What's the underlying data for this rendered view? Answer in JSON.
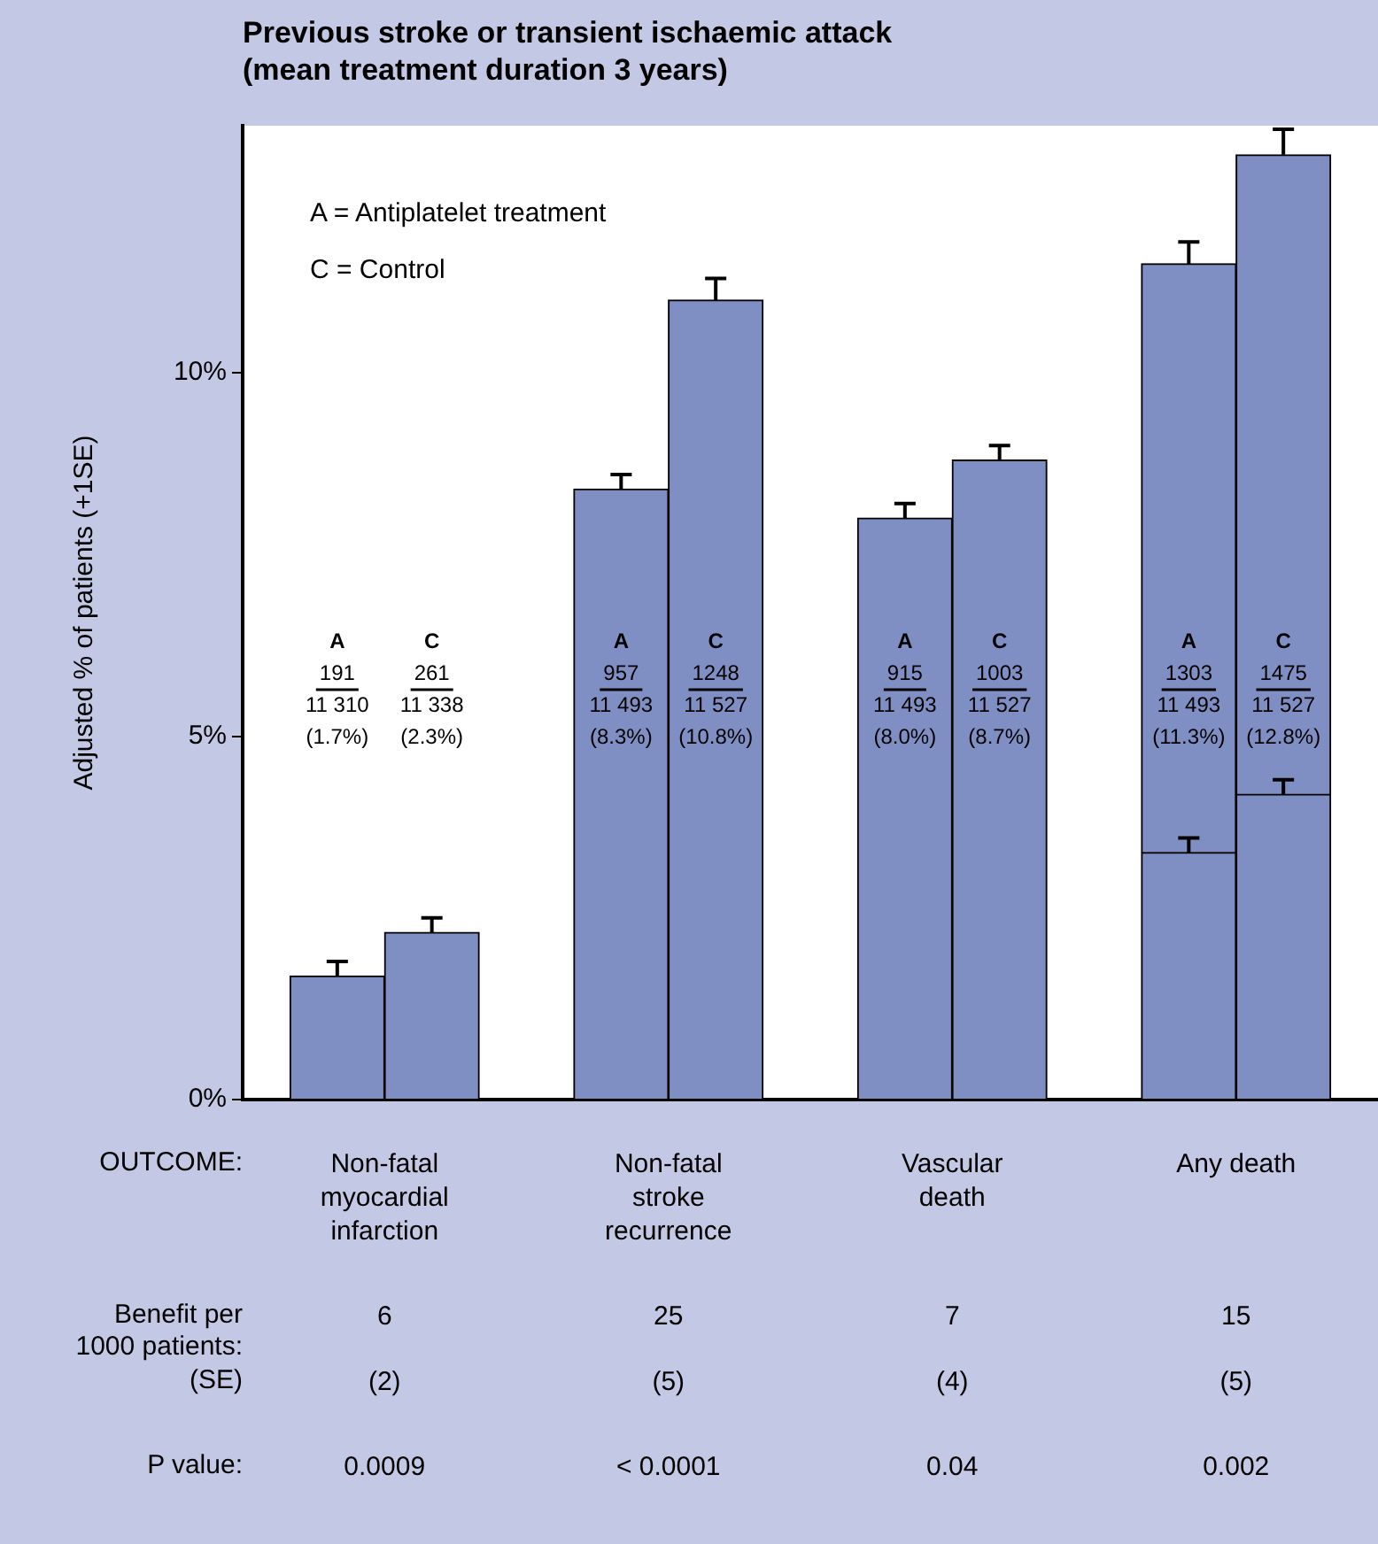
{
  "chart_data": {
    "type": "bar",
    "title": "Previous stroke or transient ischaemic attack (mean treatment duration 3 years)",
    "ylabel": "Adjusted % of patients (+1SE)",
    "categories": [
      null,
      "A",
      "C",
      null,
      "A",
      "C",
      null,
      "A",
      "C",
      null,
      "A",
      "C",
      null
    ],
    "stacked": true,
    "series": [
      {
        "color": "#7f8fc4",
        "values": [
          null,
          1.7,
          2.3,
          null,
          8.4,
          11.0,
          null,
          8.0,
          8.8,
          null,
          3.4,
          4.2,
          null
        ],
        "errors": [
          null,
          0.2,
          0.2,
          null,
          0.2,
          0.3,
          null,
          0.2,
          0.2,
          null,
          0.2,
          0.2,
          null
        ]
      },
      {
        "color": "#7f8fc4",
        "values": [
          null,
          null,
          null,
          null,
          null,
          null,
          null,
          null,
          null,
          null,
          8.1,
          8.8,
          null
        ],
        "errors": [
          null,
          null,
          null,
          null,
          null,
          null,
          null,
          null,
          null,
          null,
          0.3,
          0.35,
          null
        ]
      }
    ],
    "ylim": [
      0,
      13.4
    ],
    "yticks": [
      {
        "value": 0,
        "label": "0%"
      },
      {
        "value": 5,
        "label": "5%"
      },
      {
        "value": 10,
        "label": "10%"
      }
    ],
    "grid": false,
    "legend": false,
    "annotations": [
      "A = Antiplatelet treatment",
      "C = Control",
      "OUTCOME:",
      "Non-fatal myocardial infarction",
      "Non-fatal stroke recurrence",
      "Vascular death",
      "Any death",
      "191\n11 310\n(1.7%)",
      "261\n11 338\n(2.3%)",
      "957\n11 493\n(8.3%)",
      "1248\n11 527\n(10.8%)",
      "915\n11 493\n(8.0%)",
      "1003\n11 527\n(8.7%)",
      "1303\n11 493\n(11.3%)",
      "1475\n11 527\n(12.8%)",
      "Benefit per 1000 patients:",
      "6",
      "25",
      "7",
      "15",
      "(SE)",
      "(2)",
      "(5)",
      "(4)",
      "(5)",
      "P value:",
      "0.0009",
      "< 0.0001",
      "0.04",
      "0.002"
    ]
  }
}
